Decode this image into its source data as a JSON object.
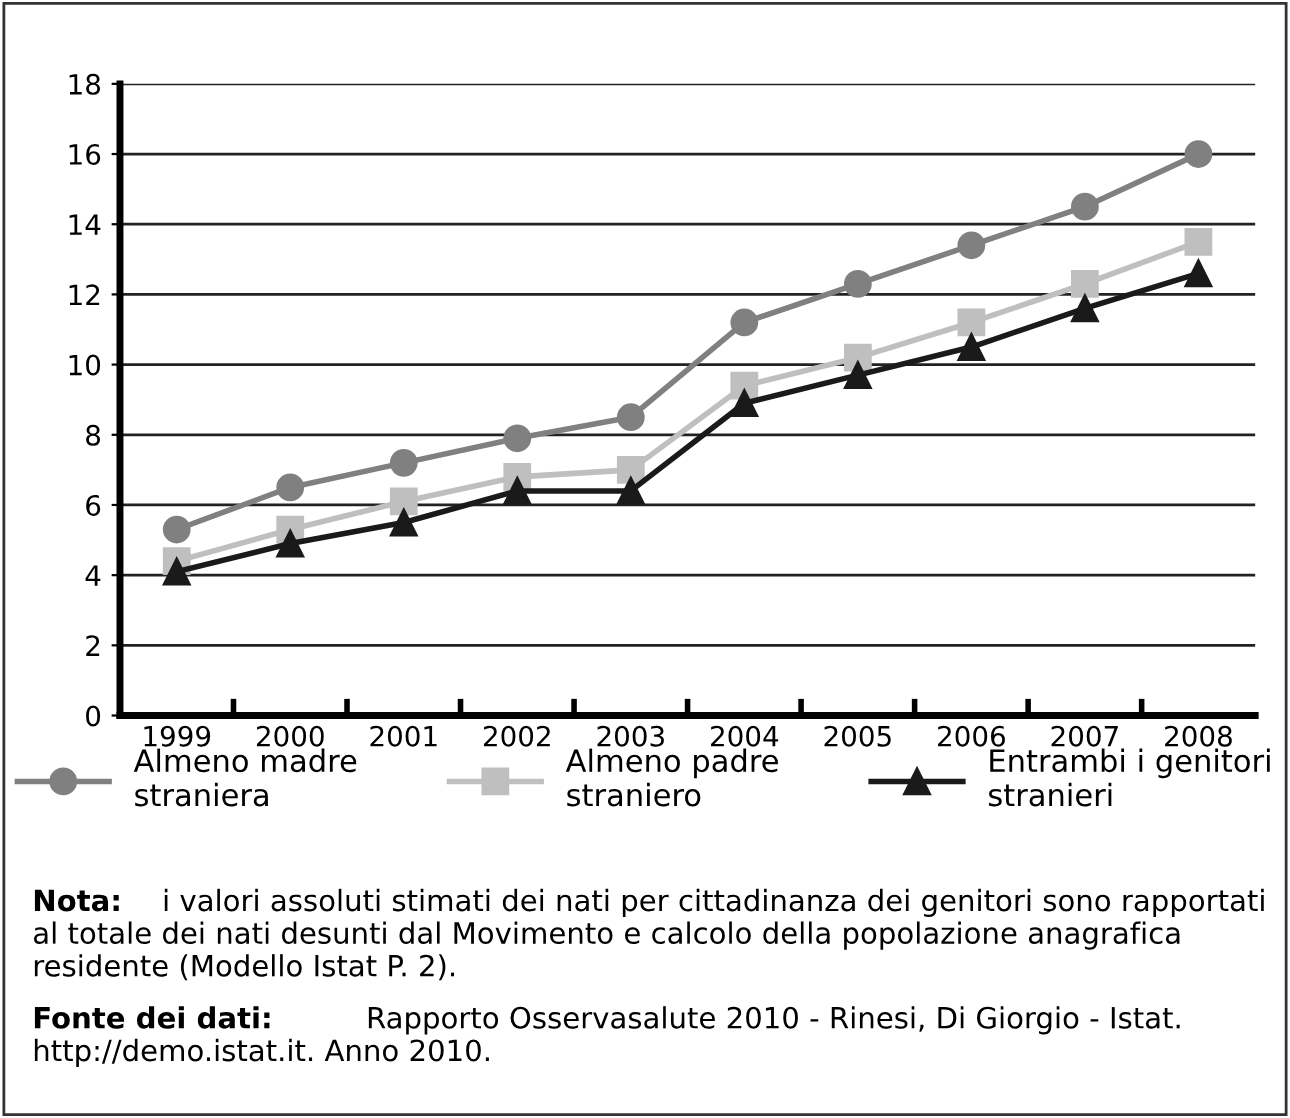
{
  "chart_data": {
    "type": "line",
    "categories": [
      "1999",
      "2000",
      "2001",
      "2002",
      "2003",
      "2004",
      "2005",
      "2006",
      "2007",
      "2008"
    ],
    "series": [
      {
        "name": "Almeno madre\nstraniera",
        "color": "#808080",
        "marker": "circle",
        "values": [
          5.3,
          6.5,
          7.2,
          7.9,
          8.5,
          11.2,
          12.3,
          13.4,
          14.5,
          16.0
        ]
      },
      {
        "name": "Almeno padre\nstraniero",
        "color": "#bfbfbf",
        "marker": "square",
        "values": [
          4.4,
          5.3,
          6.1,
          6.8,
          7.0,
          9.4,
          10.2,
          11.2,
          12.3,
          13.5
        ]
      },
      {
        "name": "Entrambi i genitori\nstranieri",
        "color": "#1a1a1a",
        "marker": "triangle",
        "values": [
          4.1,
          4.9,
          5.5,
          6.4,
          6.4,
          8.9,
          9.7,
          10.5,
          11.6,
          12.6
        ]
      }
    ],
    "ylim": [
      0,
      18
    ],
    "yticks": [
      0,
      2,
      4,
      6,
      8,
      10,
      12,
      14,
      16,
      18
    ],
    "grid": "y",
    "legend": "bottom",
    "line_style": "solid",
    "annotations": [
      "Nota: i valori assoluti stimati dei nati per cittadinanza dei genitori sono rapportati al totale dei nati desunti dal Movimento e calcolo della popolazione anagrafica residente (Modello Istat P. 2).",
      "Fonte dei dati: Rapporto Osservasalute 2010 - Rinesi, Di Giorgio - Istat. http://demo.istat.it. Anno 2010."
    ]
  }
}
